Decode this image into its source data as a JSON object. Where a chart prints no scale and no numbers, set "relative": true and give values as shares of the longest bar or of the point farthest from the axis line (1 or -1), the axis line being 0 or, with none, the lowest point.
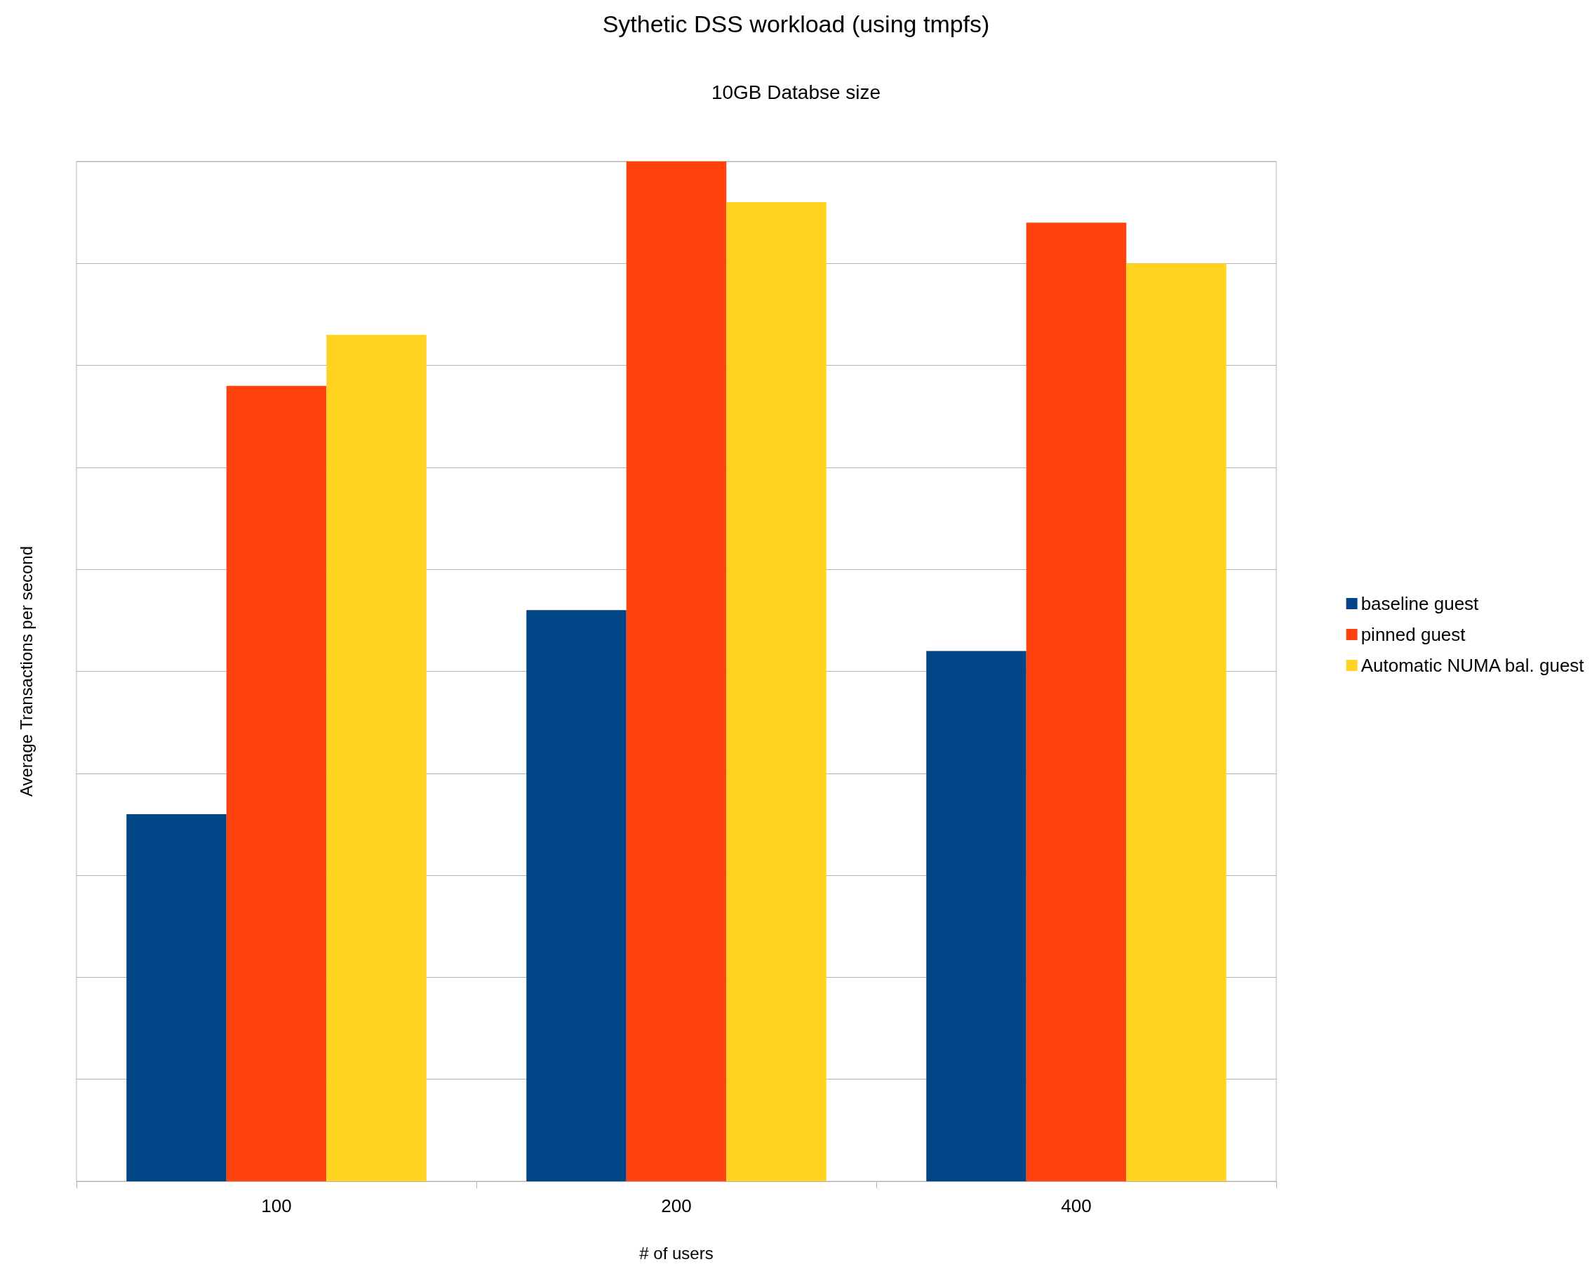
{
  "chart_data": {
    "type": "bar",
    "title": "Sythetic DSS workload (using tmpfs)",
    "subtitle": "10GB Databse size",
    "xlabel": "# of users",
    "ylabel": "Average Transactions per second",
    "categories": [
      "100",
      "200",
      "400"
    ],
    "relative": true,
    "grid": "y",
    "legend": "right",
    "series": [
      {
        "name": "baseline guest",
        "color": "#004586",
        "values": [
          0.36,
          0.56,
          0.52
        ]
      },
      {
        "name": "pinned guest",
        "color": "#ff420e",
        "values": [
          0.78,
          1,
          0.94
        ]
      },
      {
        "name": "Automatic NUMA bal. guest",
        "color": "#ffd320",
        "values": [
          0.83,
          0.96,
          0.9
        ]
      }
    ]
  }
}
